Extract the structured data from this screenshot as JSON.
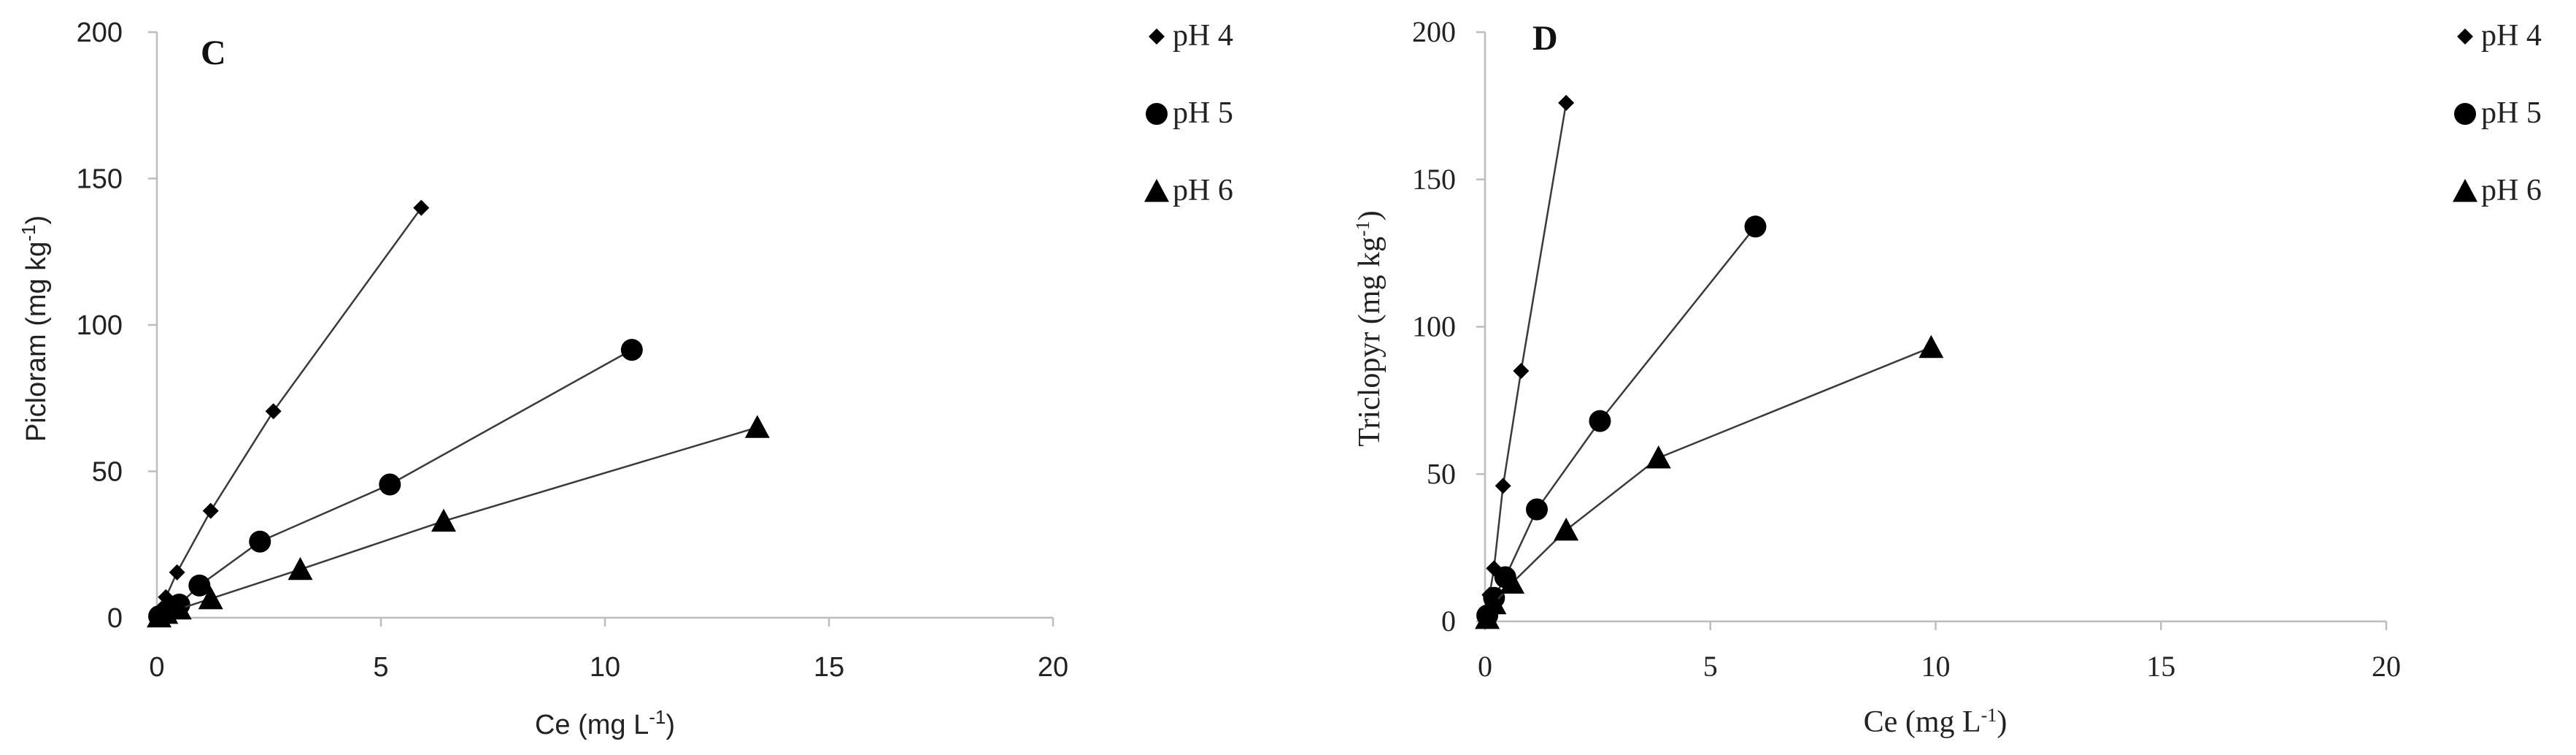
{
  "chart_data": [
    {
      "type": "scatter",
      "panel_label": "C",
      "ylabel": "Picloram (mg kg",
      "ylabel_sup": "-1",
      "ylabel_tail": ")",
      "xlabel": "Ce (mg L",
      "xlabel_sup": "-1",
      "xlabel_tail": ")",
      "xlim": [
        0,
        20
      ],
      "ylim": [
        0,
        200
      ],
      "xticks": [
        "0",
        "5",
        "10",
        "15",
        "20"
      ],
      "yticks": [
        "0",
        "50",
        "100",
        "150",
        "200"
      ],
      "grid": false,
      "legend_position": "top-right",
      "series": [
        {
          "name": "pH 4",
          "marker": "diamond",
          "x": [
            0.05,
            0.1,
            0.2,
            0.45,
            1.2,
            2.6,
            5.9
          ],
          "y": [
            1,
            3,
            7,
            15.5,
            36.5,
            70.5,
            140
          ]
        },
        {
          "name": "pH 5",
          "marker": "circle",
          "x": [
            0.05,
            0.2,
            0.5,
            0.95,
            2.3,
            5.2,
            10.6
          ],
          "y": [
            0.5,
            2,
            4.5,
            11,
            26,
            45.5,
            91.5
          ]
        },
        {
          "name": "pH 6",
          "marker": "triangle",
          "x": [
            0.05,
            0.2,
            0.5,
            1.2,
            3.2,
            6.4,
            13.4
          ],
          "y": [
            0.3,
            1.5,
            3,
            6.5,
            16.5,
            33,
            65
          ]
        }
      ]
    },
    {
      "type": "scatter",
      "panel_label": "D",
      "ylabel": "Triclopyr (mg kg",
      "ylabel_sup": "-1",
      "ylabel_tail": ")",
      "xlabel": "Ce (mg L",
      "xlabel_sup": "-1",
      "xlabel_tail": ")",
      "xlim": [
        0,
        20
      ],
      "ylim": [
        0,
        200
      ],
      "xticks": [
        "0",
        "5",
        "10",
        "15",
        "20"
      ],
      "yticks": [
        "0",
        "50",
        "100",
        "150",
        "200"
      ],
      "grid": false,
      "legend_position": "top-right",
      "series": [
        {
          "name": "pH 4",
          "marker": "diamond",
          "x": [
            0.03,
            0.1,
            0.2,
            0.4,
            0.8,
            1.8
          ],
          "y": [
            3,
            9,
            18,
            46,
            85,
            176
          ]
        },
        {
          "name": "pH 5",
          "marker": "circle",
          "x": [
            0.05,
            0.2,
            0.45,
            1.15,
            2.55,
            6.0
          ],
          "y": [
            2,
            8,
            15,
            38,
            68,
            134
          ]
        },
        {
          "name": "pH 6",
          "marker": "triangle",
          "x": [
            0.05,
            0.2,
            0.6,
            1.8,
            3.85,
            9.9
          ],
          "y": [
            1,
            6,
            13,
            31,
            55.5,
            93
          ]
        }
      ]
    }
  ]
}
